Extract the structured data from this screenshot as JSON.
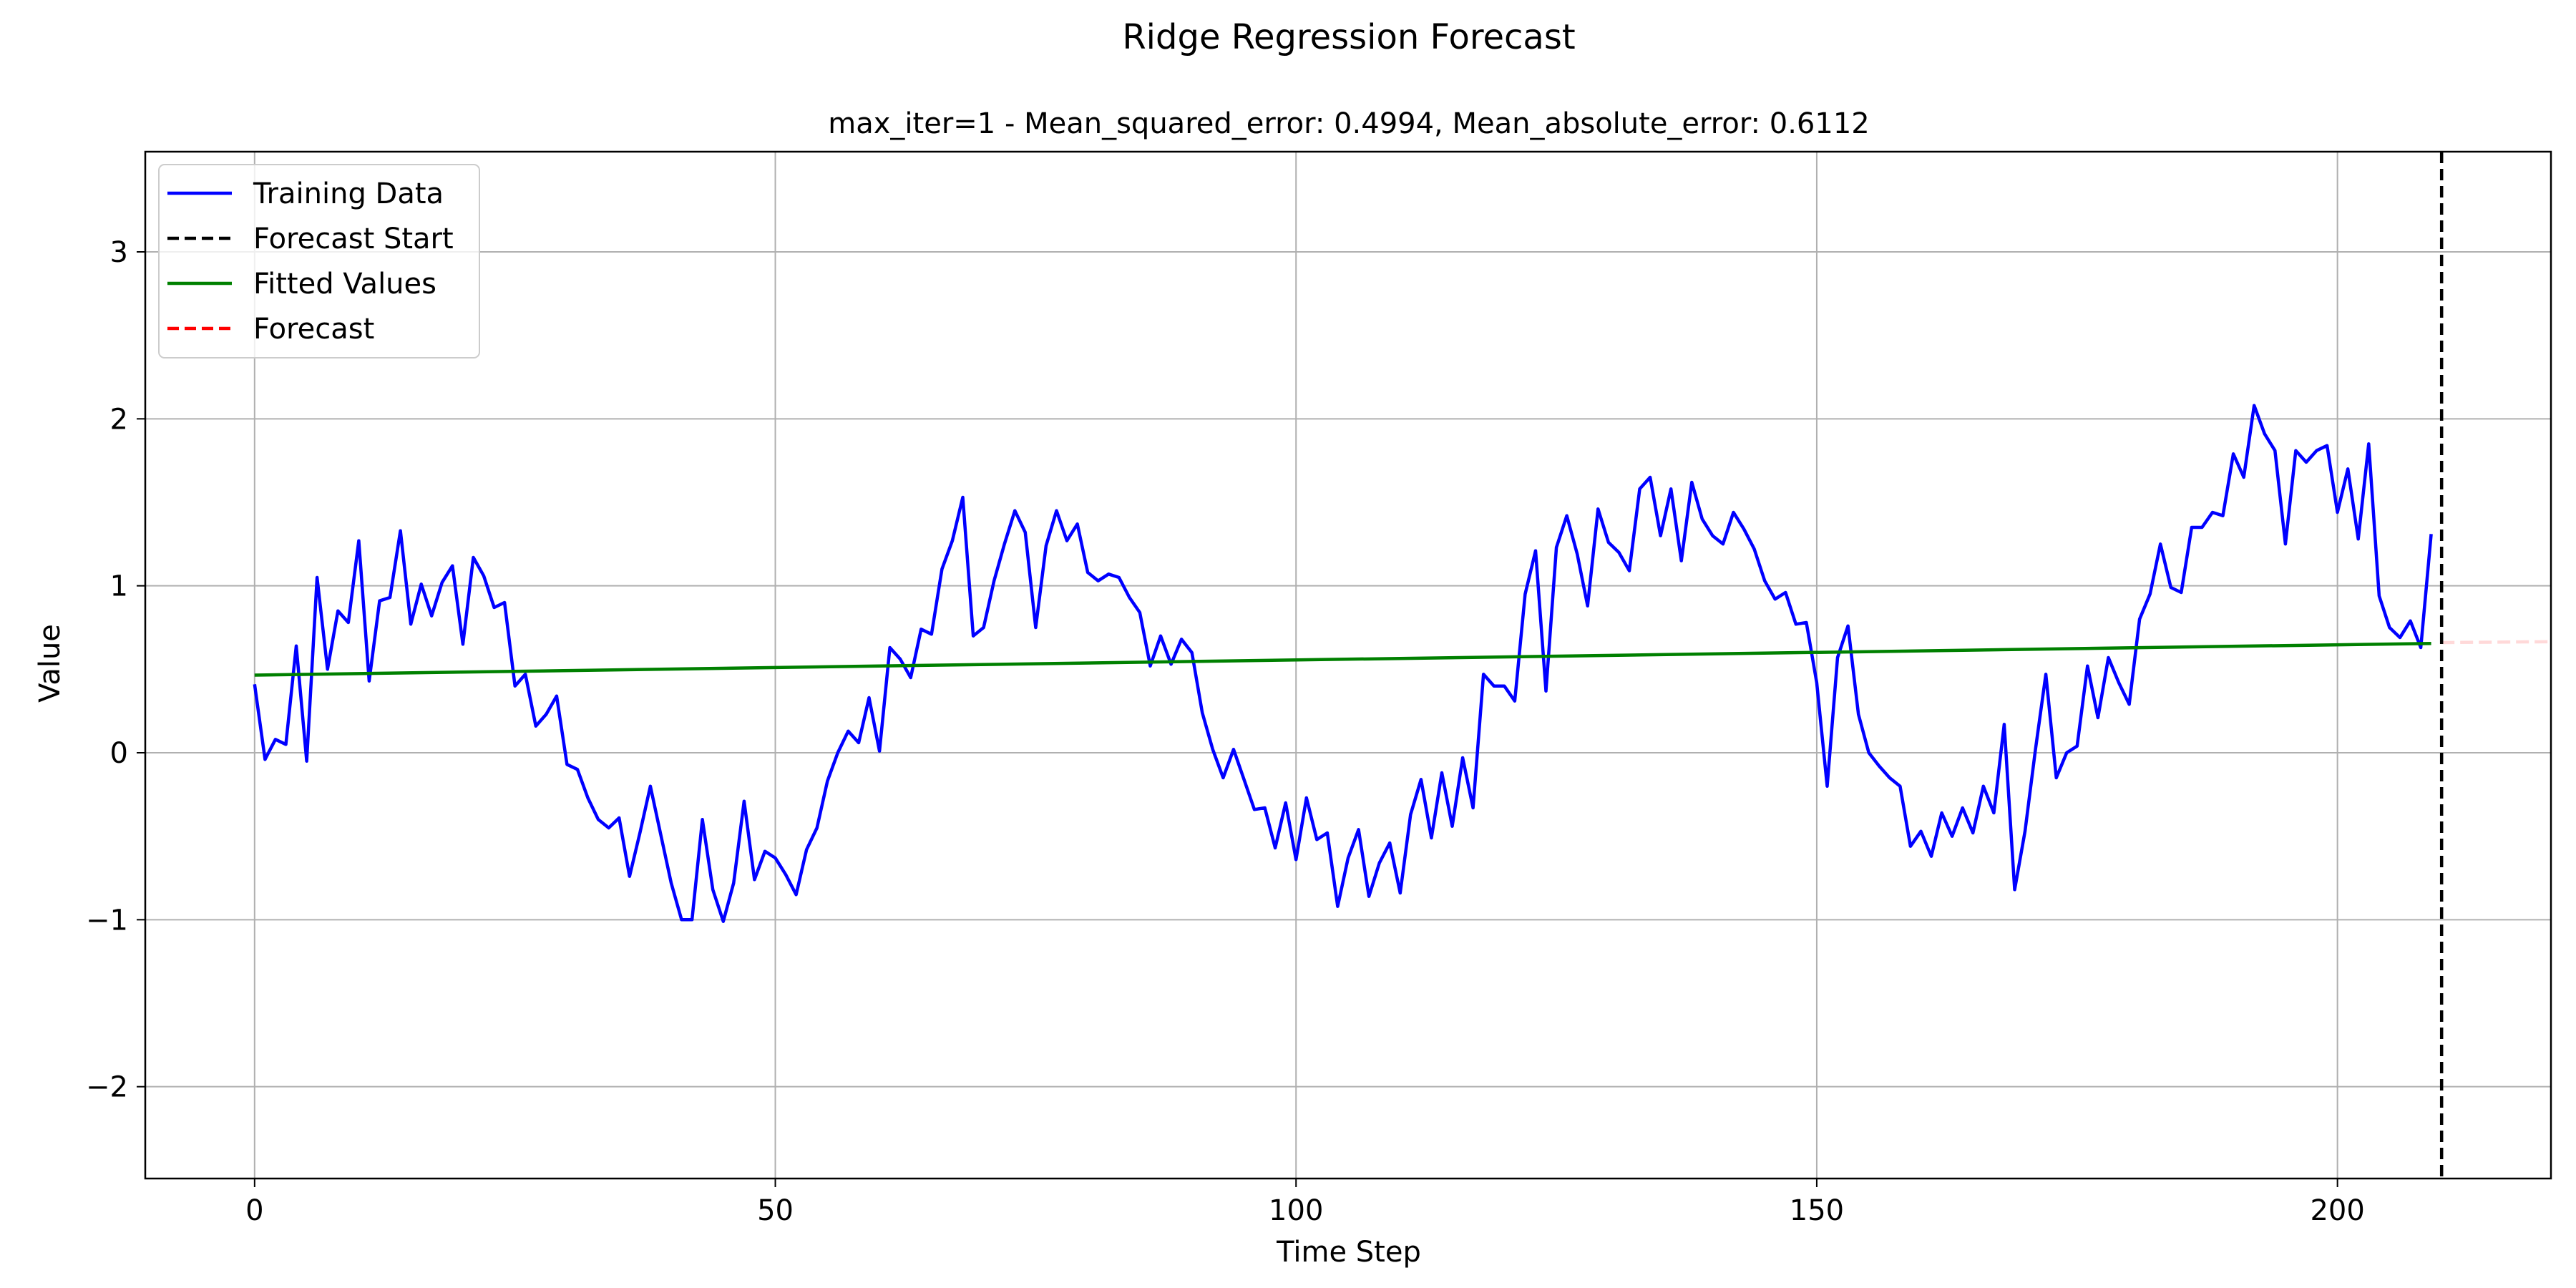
{
  "figure_title": "Ridge Regression Forecast",
  "chart_data": {
    "type": "line",
    "subtitle": "max_iter=1 - Mean_squared_error: 0.4994, Mean_absolute_error: 0.6112",
    "xlabel": "Time Step",
    "ylabel": "Value",
    "xlim": [
      -10.5,
      220.5
    ],
    "ylim": [
      -2.55,
      3.6
    ],
    "xticks": [
      0,
      50,
      100,
      150,
      200
    ],
    "yticks": [
      -2,
      -1,
      0,
      1,
      2,
      3
    ],
    "xtick_labels": [
      "0",
      "50",
      "100",
      "150",
      "200"
    ],
    "ytick_labels": [
      "−2",
      "−1",
      "0",
      "1",
      "2",
      "3"
    ],
    "grid": true,
    "legend_position": "top-left",
    "legend": [
      {
        "label": "Training Data",
        "color": "#0000ff",
        "style": "solid"
      },
      {
        "label": "Forecast Start",
        "color": "#000000",
        "style": "dashed"
      },
      {
        "label": "Fitted Values",
        "color": "#008000",
        "style": "solid"
      },
      {
        "label": "Forecast",
        "color": "#ff0000",
        "style": "dashed"
      }
    ],
    "series": [
      {
        "name": "Training Data",
        "color": "#0000ff",
        "x_start": 0,
        "x_step": 1,
        "values": [
          0.41,
          -0.04,
          0.08,
          0.05,
          0.64,
          -0.05,
          1.05,
          0.5,
          0.85,
          0.78,
          1.27,
          0.43,
          0.91,
          0.93,
          1.33,
          0.77,
          1.01,
          0.82,
          1.02,
          1.12,
          0.65,
          1.17,
          1.06,
          0.87,
          0.9,
          0.4,
          0.47,
          0.16,
          0.23,
          0.34,
          -0.07,
          -0.1,
          -0.27,
          -0.4,
          -0.45,
          -0.39,
          -0.74,
          -0.48,
          -0.2,
          -0.49,
          -0.78,
          -1.0,
          -1.0,
          -0.4,
          -0.82,
          -1.01,
          -0.78,
          -0.29,
          -0.76,
          -0.59,
          -0.63,
          -0.73,
          -0.85,
          -0.58,
          -0.45,
          -0.17,
          0.0,
          0.13,
          0.06,
          0.33,
          0.01,
          0.63,
          0.56,
          0.45,
          0.74,
          0.71,
          1.1,
          1.27,
          1.53,
          0.7,
          0.75,
          1.03,
          1.25,
          1.45,
          1.32,
          0.75,
          1.24,
          1.45,
          1.27,
          1.37,
          1.08,
          1.03,
          1.07,
          1.05,
          0.93,
          0.84,
          0.52,
          0.7,
          0.53,
          0.68,
          0.6,
          0.24,
          0.02,
          -0.15,
          0.02,
          -0.16,
          -0.34,
          -0.33,
          -0.57,
          -0.3,
          -0.64,
          -0.27,
          -0.52,
          -0.48,
          -0.92,
          -0.63,
          -0.46,
          -0.86,
          -0.66,
          -0.54,
          -0.84,
          -0.37,
          -0.16,
          -0.51,
          -0.12,
          -0.44,
          -0.03,
          -0.33,
          0.47,
          0.4,
          0.4,
          0.31,
          0.95,
          1.21,
          0.37,
          1.23,
          1.42,
          1.19,
          0.88,
          1.46,
          1.26,
          1.2,
          1.09,
          1.58,
          1.65,
          1.3,
          1.58,
          1.15,
          1.62,
          1.4,
          1.3,
          1.25,
          1.44,
          1.34,
          1.22,
          1.03,
          0.92,
          0.96,
          0.77,
          0.78,
          0.42,
          -0.2,
          0.57,
          0.76,
          0.23,
          0.0,
          -0.08,
          -0.15,
          -0.2,
          -0.56,
          -0.47,
          -0.62,
          -0.36,
          -0.5,
          -0.33,
          -0.48,
          -0.2,
          -0.36,
          0.17,
          -0.82,
          -0.47,
          0.02,
          0.47,
          -0.15,
          0.0,
          0.04,
          0.52,
          0.21,
          0.57,
          0.42,
          0.29,
          0.8,
          0.95,
          1.25,
          0.99,
          0.96,
          1.35,
          1.35,
          1.44,
          1.42,
          1.79,
          1.65,
          2.08,
          1.91,
          1.81,
          1.25,
          1.81,
          1.74,
          1.81,
          1.84,
          1.44,
          1.7,
          1.28,
          1.85,
          0.94,
          0.75,
          0.69,
          0.79,
          0.63,
          1.31
        ]
      },
      {
        "name": "Fitted Values",
        "color": "#008000",
        "x": [
          0,
          209
        ],
        "y": [
          0.465,
          0.655
        ]
      },
      {
        "name": "Forecast",
        "color": "#ff0000",
        "x": [
          210,
          220.5
        ],
        "y": [
          0.66,
          0.665
        ]
      }
    ],
    "forecast_start_x": 210
  }
}
